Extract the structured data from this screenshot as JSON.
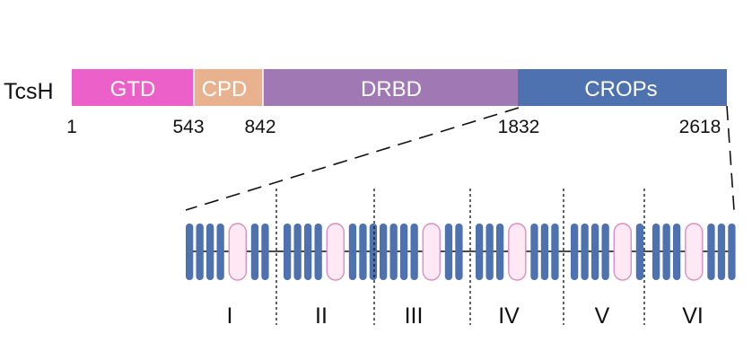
{
  "protein": {
    "name": "TcsH",
    "domains": [
      {
        "label": "GTD",
        "start": 1,
        "end": 543,
        "color": "#ec61c9"
      },
      {
        "label": "CPD",
        "start": 543,
        "end": 842,
        "color": "#e8b28f"
      },
      {
        "label": "DRBD",
        "start": 842,
        "end": 1832,
        "color": "#a079b4"
      },
      {
        "label": "CROPs",
        "start": 1832,
        "end": 2618,
        "color": "#4e72b0"
      }
    ],
    "positions": [
      "1",
      "543",
      "842",
      "1832",
      "2618"
    ]
  },
  "crops_detail": {
    "repeat_color": "#4e72b0",
    "long_repeat_fill": "#fde8f3",
    "long_repeat_stroke": "#d98fbf",
    "units": [
      {
        "label": "I",
        "pattern": [
          "s",
          "s",
          "s",
          "s",
          "L",
          "s",
          "s"
        ]
      },
      {
        "label": "II",
        "pattern": [
          "s",
          "s",
          "s",
          "s",
          "L",
          "s",
          "s",
          "s"
        ]
      },
      {
        "label": "III",
        "pattern": [
          "s",
          "s",
          "s",
          "s",
          "L",
          "s",
          "s"
        ]
      },
      {
        "label": "IV",
        "pattern": [
          "s",
          "s",
          "s",
          "L",
          "s",
          "s",
          "s"
        ]
      },
      {
        "label": "V",
        "pattern": [
          "s",
          "s",
          "s",
          "s",
          "L",
          "s"
        ]
      },
      {
        "label": "VI",
        "pattern": [
          "s",
          "s",
          "s",
          "L",
          "s",
          "s",
          "s"
        ]
      }
    ]
  }
}
